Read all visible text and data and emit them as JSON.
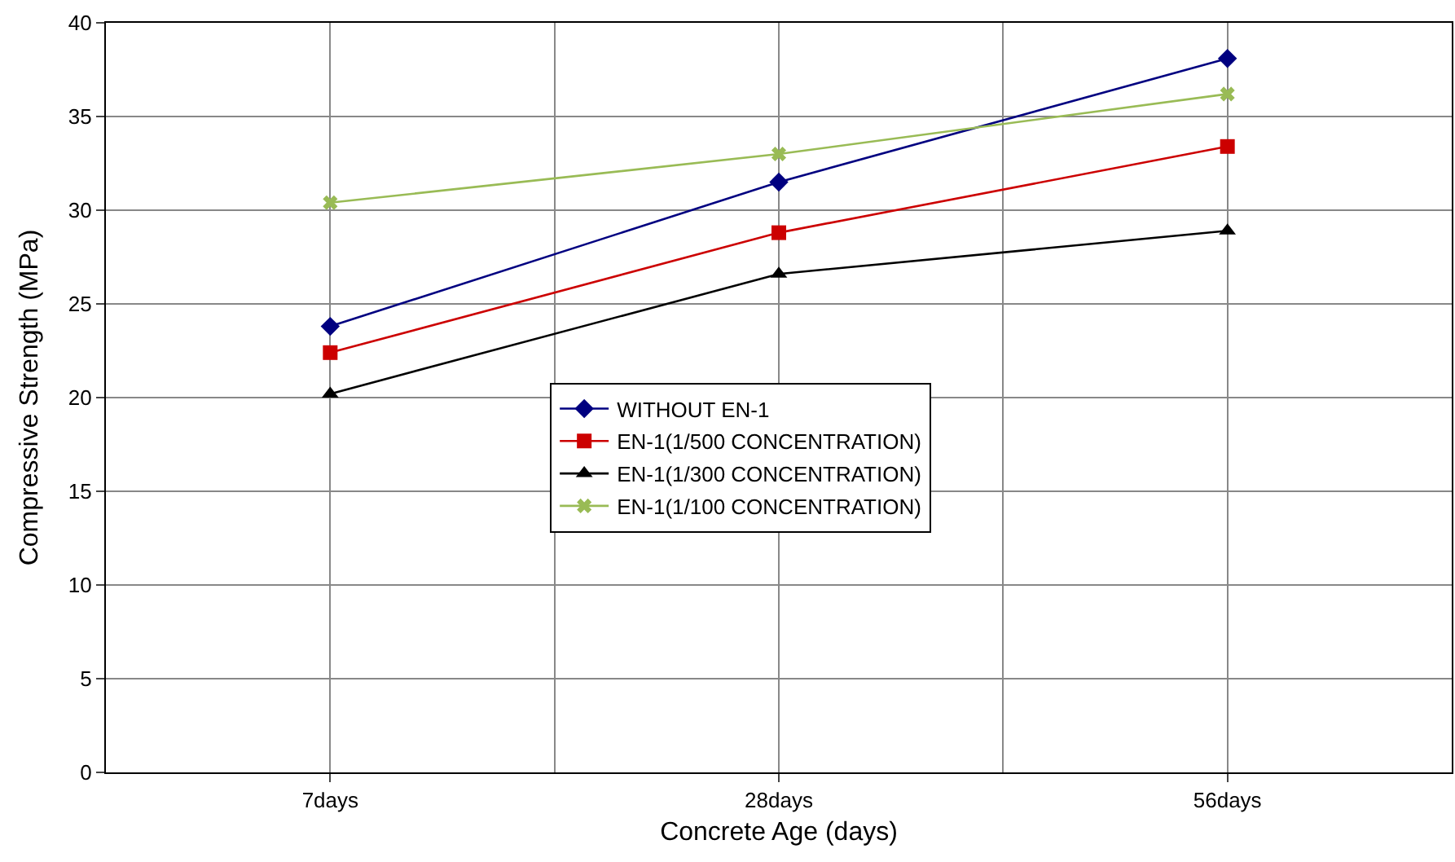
{
  "chart_data": {
    "type": "line",
    "xlabel": "Concrete Age (days)",
    "ylabel": "Compressive Strength (MPa)",
    "categories": [
      "7days",
      "28days",
      "56days"
    ],
    "series": [
      {
        "name": "WITHOUT EN-1",
        "color": "#000080",
        "marker": "diamond",
        "values": [
          23.8,
          31.5,
          38.1
        ]
      },
      {
        "name": "EN-1(1/500 CONCENTRATION)",
        "color": "#cc0000",
        "marker": "square",
        "values": [
          22.4,
          28.8,
          33.4
        ]
      },
      {
        "name": "EN-1(1/300 CONCENTRATION)",
        "color": "#000000",
        "marker": "triangle",
        "values": [
          20.2,
          26.6,
          28.9
        ]
      },
      {
        "name": "EN-1(1/100 CONCENTRATION)",
        "color": "#99bb55",
        "marker": "cross",
        "values": [
          30.4,
          33.0,
          36.2
        ]
      }
    ],
    "ylim": [
      0,
      40
    ],
    "yticks": [
      0,
      5,
      10,
      15,
      20,
      25,
      30,
      35,
      40
    ],
    "grid": true,
    "legend": "center",
    "line_style": "solid"
  }
}
